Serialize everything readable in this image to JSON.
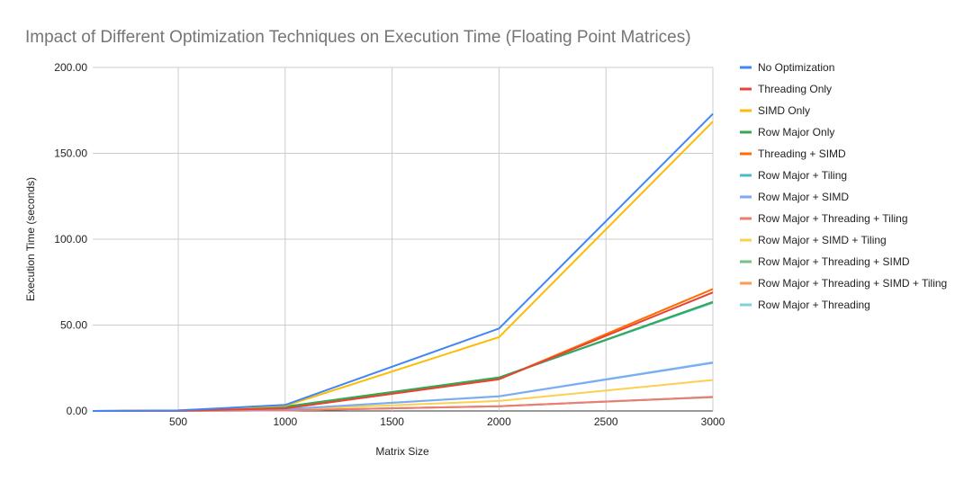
{
  "chart_data": {
    "type": "line",
    "title": "Impact of Different Optimization Techniques on Execution Time (Floating Point Matrices)",
    "xlabel": "Matrix Size",
    "ylabel": "Execution Time (seconds)",
    "xlim": [
      100,
      3000
    ],
    "ylim": [
      0,
      200
    ],
    "x_ticks": [
      "500",
      "1000",
      "1500",
      "2000",
      "2500",
      "3000"
    ],
    "x_tick_values": [
      500,
      1000,
      1500,
      2000,
      2500,
      3000
    ],
    "y_ticks": [
      "0.00",
      "50.00",
      "100.00",
      "150.00",
      "200.00"
    ],
    "y_tick_values": [
      0,
      50,
      100,
      150,
      200
    ],
    "grid": true,
    "legend_position": "right",
    "x": [
      100,
      500,
      1000,
      2000,
      3000
    ],
    "series": [
      {
        "name": "No Optimization",
        "color": "#4285F4",
        "values": [
          0.0,
          0.3,
          3.5,
          48.0,
          173.0
        ]
      },
      {
        "name": "Threading Only",
        "color": "#EA4335",
        "values": [
          0.0,
          0.1,
          1.5,
          18.5,
          69.0
        ]
      },
      {
        "name": "SIMD Only",
        "color": "#FBBC04",
        "values": [
          0.0,
          0.3,
          3.0,
          43.0,
          168.5
        ]
      },
      {
        "name": "Row Major Only",
        "color": "#34A853",
        "values": [
          0.0,
          0.2,
          2.5,
          19.5,
          63.5
        ]
      },
      {
        "name": "Threading + SIMD",
        "color": "#FF6D01",
        "values": [
          0.0,
          0.1,
          1.5,
          18.5,
          71.0
        ]
      },
      {
        "name": "Row Major + Tiling",
        "color": "#46BDC6",
        "values": [
          0.0,
          0.2,
          2.5,
          19.5,
          63.0
        ]
      },
      {
        "name": "Row Major + SIMD",
        "color": "#7BAAF7",
        "values": [
          0.0,
          0.1,
          1.0,
          8.5,
          28.0
        ]
      },
      {
        "name": "Row Major + Threading + Tiling",
        "color": "#F07B72",
        "values": [
          0.0,
          0.05,
          0.3,
          2.8,
          8.2
        ]
      },
      {
        "name": "Row Major + SIMD + Tiling",
        "color": "#FCD04F",
        "values": [
          0.0,
          0.08,
          0.8,
          5.8,
          18.0
        ]
      },
      {
        "name": "Row Major + Threading + SIMD",
        "color": "#71C287",
        "values": [
          0.0,
          0.05,
          0.3,
          2.8,
          8.0
        ]
      },
      {
        "name": "Row Major + Threading + SIMD + Tiling",
        "color": "#FF994D",
        "values": [
          0.0,
          0.05,
          0.3,
          2.7,
          8.1
        ]
      },
      {
        "name": "Row Major + Threading",
        "color": "#7ED1D7",
        "values": [
          0.0,
          0.1,
          1.0,
          8.6,
          28.3
        ]
      }
    ]
  }
}
